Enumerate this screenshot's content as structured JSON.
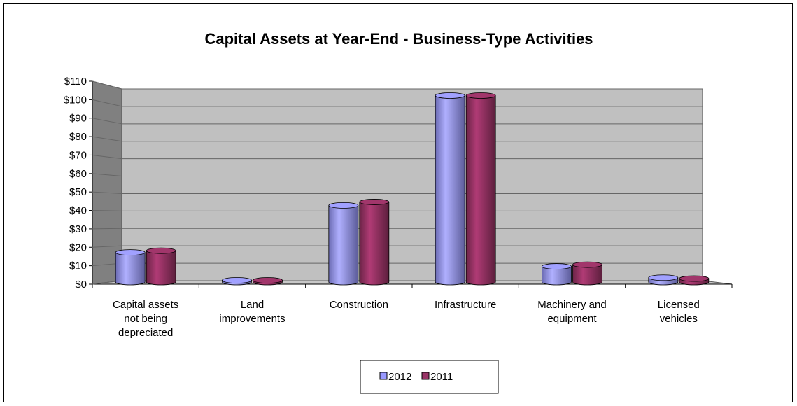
{
  "chart_data": {
    "type": "bar",
    "title": "Capital Assets at Year-End - Business-Type Activities",
    "categories": [
      [
        "Capital assets",
        "not being",
        "depreciated"
      ],
      [
        "Land",
        "improvements"
      ],
      [
        "Construction"
      ],
      [
        "Infrastructure"
      ],
      [
        "Machinery and",
        "equipment"
      ],
      [
        "Licensed",
        "vehicles"
      ]
    ],
    "series": [
      {
        "name": "2012",
        "values": [
          17,
          1,
          44,
          107,
          9,
          2.5
        ],
        "color": "#9999ff"
      },
      {
        "name": "2011",
        "values": [
          18,
          1,
          46,
          107,
          10,
          2
        ],
        "color": "#993366"
      }
    ],
    "ylim": [
      0,
      110
    ],
    "yticks": [
      0,
      10,
      20,
      30,
      40,
      50,
      60,
      70,
      80,
      90,
      100,
      110
    ],
    "ytick_prefix": "$",
    "grid": true,
    "legend_position": "bottom"
  }
}
